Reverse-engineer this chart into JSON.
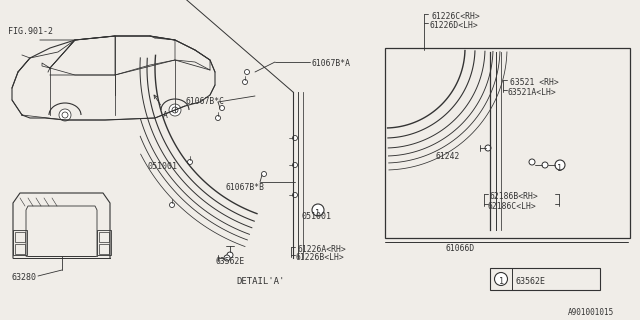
{
  "bg_color": "#f0ede8",
  "line_color": "#333333",
  "labels": {
    "fig901": "FIG.901-2",
    "A_label": "A",
    "61067B_A": "61067B*A",
    "61067B_C": "61067B*C",
    "61067B_B": "61067B*B",
    "051001a": "051001",
    "051001b": "051001",
    "63562E_strip": "63562E",
    "63280": "63280",
    "61226C": "61226C<RH>",
    "61226D": "61226D<LH>",
    "63521": "63521 <RH>",
    "63521A": "63521A<LH>",
    "61242": "61242",
    "62186B": "62186B<RH>",
    "62186C": "62186C<LH>",
    "61066D": "61066D",
    "61226A": "61226A<RH>",
    "61226B": "61226B<LH>",
    "detail_title": "DETAIL'A'",
    "footnote": "A901001015",
    "legend_label": "63562E"
  }
}
